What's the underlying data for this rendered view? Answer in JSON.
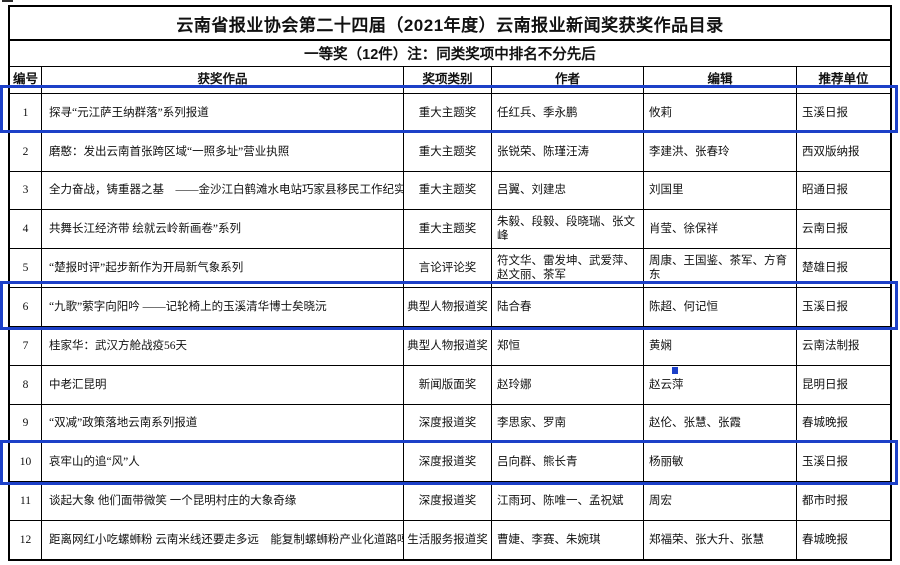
{
  "page": {
    "title": "云南省报业协会第二十四届（2021年度）云南报业新闻奖获奖作品目录",
    "subtitle": "一等奖（12件）注：同类奖项中排名不分先后"
  },
  "colors": {
    "highlight_blue": "#1c40c8",
    "border_black": "#000000"
  },
  "table": {
    "columns": {
      "no": "编号",
      "work": "获奖作品",
      "category": "奖项类别",
      "authors": "作者",
      "editors": "编辑",
      "unit": "推荐单位"
    },
    "rows": [
      {
        "no": "1",
        "work": "探寻“元江萨王纳群落”系列报道",
        "category": "重大主题奖",
        "authors": "任红兵、季永鹏",
        "editors": "攸莉",
        "unit": "玉溪日报",
        "highlighted": true
      },
      {
        "no": "2",
        "work": "磨憨：发出云南首张跨区域“一照多址”营业执照",
        "category": "重大主题奖",
        "authors": "张锐荣、陈瑾汪涛",
        "editors": "李建洪、张春玲",
        "unit": "西双版纳报",
        "highlighted": false
      },
      {
        "no": "3",
        "work": "全力奋战，铸重器之基　——金沙江白鹤滩水电站巧家县移民工作纪实",
        "category": "重大主题奖",
        "authors": "吕翼、刘建忠",
        "editors": "刘国里",
        "unit": "昭通日报",
        "highlighted": false
      },
      {
        "no": "4",
        "work": "共舞长江经济带 绘就云岭新画卷”系列",
        "category": "重大主题奖",
        "authors": "朱毅、段毅、段晓瑞、张文峰",
        "editors": "肖莹、徐保祥",
        "unit": "云南日报",
        "highlighted": false
      },
      {
        "no": "5",
        "work": "“楚报时评”起步新作为开局新气象系列",
        "category": "言论评论奖",
        "authors": "符文华、雷发坤、武爱萍、赵文丽、茶军",
        "editors": "周康、王国鉴、茶军、方育东",
        "unit": "楚雄日报",
        "highlighted": false
      },
      {
        "no": "6",
        "work": "“九歌”萦字向阳吟 ——记轮椅上的玉溪清华博士矣晓沅",
        "category": "典型人物报道奖",
        "authors": "陆合春",
        "editors": "陈超、何记恒",
        "unit": "玉溪日报",
        "highlighted": true
      },
      {
        "no": "7",
        "work": "桂家华：武汉方舱战疫56天",
        "category": "典型人物报道奖",
        "authors": "郑恒",
        "editors": "黄娴",
        "unit": "云南法制报",
        "highlighted": false
      },
      {
        "no": "8",
        "work": "中老汇昆明",
        "category": "新闻版面奖",
        "authors": "赵玲娜",
        "editors": "赵云萍",
        "unit": "昆明日报",
        "highlighted": false
      },
      {
        "no": "9",
        "work": "“双减”政策落地云南系列报道",
        "category": "深度报道奖",
        "authors": "李思家、罗南",
        "editors": "赵伦、张慧、张霞",
        "unit": "春城晚报",
        "highlighted": false
      },
      {
        "no": "10",
        "work": "哀牢山的追“风”人",
        "category": "深度报道奖",
        "authors": "吕向群、熊长青",
        "editors": "杨丽敏",
        "unit": "玉溪日报",
        "highlighted": true
      },
      {
        "no": "11",
        "work": "谈起大象 他们面带微笑 一个昆明村庄的大象奇缘",
        "category": "深度报道奖",
        "authors": "江雨珂、陈唯一、孟祝斌",
        "editors": "周宏",
        "unit": "都市时报",
        "highlighted": false
      },
      {
        "no": "12",
        "work": "距离网红小吃螺蛳粉 云南米线还要走多远　能复制螺蛳粉产业化道路吗？",
        "category": "生活服务报道奖",
        "authors": "曹婕、李赛、朱婉琪",
        "editors": "郑福荣、张大升、张慧",
        "unit": "春城晚报",
        "highlighted": false
      }
    ]
  }
}
